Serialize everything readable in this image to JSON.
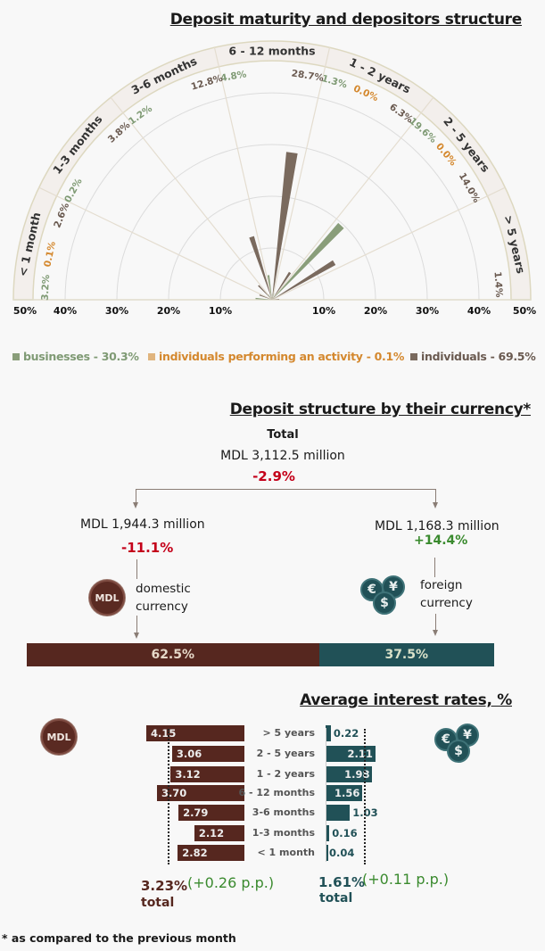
{
  "chart_data": [
    {
      "type": "polar-bar",
      "title": "Deposit maturity and depositors structure",
      "categories": [
        "< 1 month",
        "1-3 months",
        "3-6 months",
        "6 - 12 months",
        "1 - 2 years",
        "2 - 5 years",
        "> 5 years"
      ],
      "series": [
        {
          "name": "businesses",
          "color": "#8a9e7a",
          "label_color": "#7f9a74",
          "values": [
            3.2,
            0.2,
            1.2,
            4.8,
            1.3,
            19.6,
            null
          ]
        },
        {
          "name": "individuals performing an activity",
          "color": "#d4882e",
          "label_color": "#d4882e",
          "values": [
            0.1,
            null,
            null,
            null,
            0.0,
            0.0,
            null
          ]
        },
        {
          "name": "individuals",
          "color": "#7a6a5e",
          "label_color": "#6a5a50",
          "values": [
            2.6,
            3.8,
            12.8,
            28.7,
            6.3,
            14.0,
            1.4
          ]
        }
      ],
      "radial_ticks": [
        "50%",
        "40%",
        "30%",
        "20%",
        "10%",
        "10%",
        "20%",
        "30%",
        "40%",
        "50%"
      ],
      "rmax": 50,
      "legend": [
        {
          "label": "businesses - 30.3%",
          "color": "#8a9e7a",
          "text_color": "#7f9a74"
        },
        {
          "label": "individuals performing an activity - 0.1%",
          "color": "#e0b47e",
          "text_color": "#d4882e"
        },
        {
          "label": "individuals - 69.5%",
          "color": "#7a6a5e",
          "text_color": "#6a5a50"
        }
      ]
    },
    {
      "type": "bar",
      "title": "Average interest rates, %",
      "categories": [
        "> 5 years",
        "2 - 5 years",
        "1 - 2 years",
        "6 - 12 months",
        "3-6 months",
        "1-3 months",
        "< 1 month"
      ],
      "series": [
        {
          "name": "MDL",
          "color": "#56271f",
          "values": [
            4.15,
            3.06,
            3.12,
            3.7,
            2.79,
            2.12,
            2.82
          ],
          "labels": [
            "4.15",
            "3.06",
            "3.12",
            "3.70",
            "2.79",
            "2.12",
            "2.82"
          ],
          "average": 3.23
        },
        {
          "name": "foreign currency",
          "color": "#215157",
          "values": [
            0.22,
            2.11,
            1.98,
            1.56,
            1.03,
            0.16,
            0.04
          ],
          "labels": [
            "0.22",
            "2.11",
            "1.98",
            "1.56",
            "1.03",
            "0.16",
            "0.04"
          ],
          "average": 1.61
        }
      ]
    }
  ],
  "currency": {
    "title": "Deposit structure by their currency*",
    "total_label": "Total",
    "total_value": "MDL 3,112.5 million",
    "total_change": "-2.9%",
    "domestic": {
      "value": "MDL 1,944.3 million",
      "change": "-11.1%",
      "label1": "domestic",
      "label2": "currency",
      "share": "62.5%",
      "share_num": 62.5,
      "coin": "MDL",
      "color": "#56271f"
    },
    "foreign": {
      "value": "MDL 1,168.3 million",
      "change": "+14.4%",
      "label1": "foreign",
      "label2": "currency",
      "share": "37.5%",
      "share_num": 37.5,
      "coins": [
        "€",
        "¥",
        "$"
      ],
      "color": "#215157"
    }
  },
  "rates": {
    "mdl_coin": "MDL",
    "fx_coins": [
      "€",
      "¥",
      "$"
    ],
    "mdl_total": "3.23%",
    "mdl_change": "(+0.26 p.p.)",
    "mdl_total_label": "total",
    "fx_total": "1.61%",
    "fx_change": "(+0.11 p.p.)",
    "fx_total_label": "total"
  },
  "footnote": {
    "star": "*",
    "text": "as compared to the previous month"
  }
}
